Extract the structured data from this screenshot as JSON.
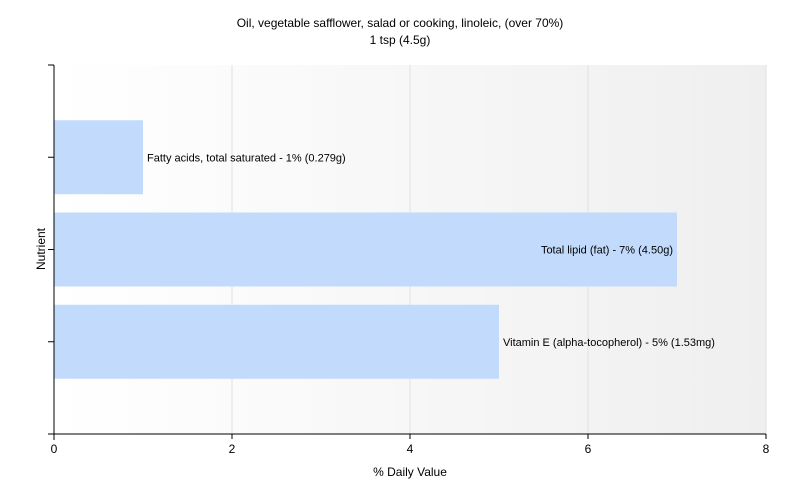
{
  "chart_data": {
    "type": "bar",
    "orientation": "horizontal",
    "title": "Oil, vegetable safflower, salad or cooking, linoleic, (over 70%)",
    "subtitle": "1 tsp (4.5g)",
    "xlabel": "% Daily Value",
    "ylabel": "Nutrient",
    "xlim": [
      0,
      8
    ],
    "xticks": [
      0,
      2,
      4,
      6,
      8
    ],
    "grid": true,
    "bar_color": "#c2dbfc",
    "bars": [
      {
        "label": "Fatty acids, total saturated - 1% (0.279g)",
        "value": 1
      },
      {
        "label": "Total lipid (fat) - 7% (4.50g)",
        "value": 7
      },
      {
        "label": "Vitamin E (alpha-tocopherol) - 5% (1.53mg)",
        "value": 5
      }
    ]
  }
}
